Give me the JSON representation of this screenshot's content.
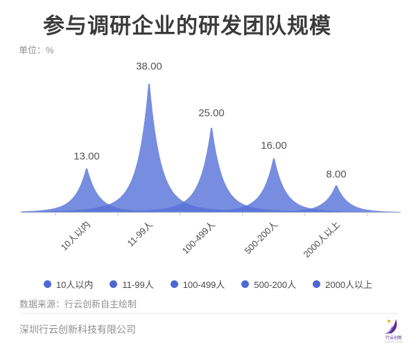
{
  "header": {
    "title": "参与调研企业的研发团队规模",
    "unit_label": "单位：%"
  },
  "chart_data": {
    "type": "area",
    "categories": [
      "10人以内",
      "11-99人",
      "100-499人",
      "500-200人",
      "2000人以上"
    ],
    "values": [
      13,
      38,
      25,
      16,
      8
    ],
    "value_labels": [
      "13.00",
      "38.00",
      "25.00",
      "16.00",
      "8.00"
    ],
    "title": "参与调研企业的研发团队规模",
    "unit": "%",
    "xlabel": "",
    "ylabel": "",
    "ylim": [
      0,
      40
    ],
    "grid": false,
    "legend": [
      "10人以内",
      "11-99人",
      "100-499人",
      "500-200人",
      "2000人以上"
    ],
    "legend_position": "bottom",
    "x_label_rotation": 45
  },
  "footer": {
    "source": "数据来源：行云创新自主绘制",
    "company": "深圳行云创新科技有限公司",
    "logo": {
      "text": "行云创新",
      "subtext": "CLOUD TOGO"
    }
  },
  "colors": {
    "area": "#5570d8",
    "area_opacity": "0.8",
    "legend_dot": "#4e68d2",
    "axis": "#c9c9c9",
    "title": "#3b3b3b",
    "value_label": "#555555",
    "axis_label": "#4a4a4a",
    "muted_text": "#8f8f8f",
    "divider": "#e9e9e9",
    "logo_purple": "#5b2e91",
    "logo_purple_light": "#8a5cc4",
    "logo_yellow": "#f2b632"
  }
}
